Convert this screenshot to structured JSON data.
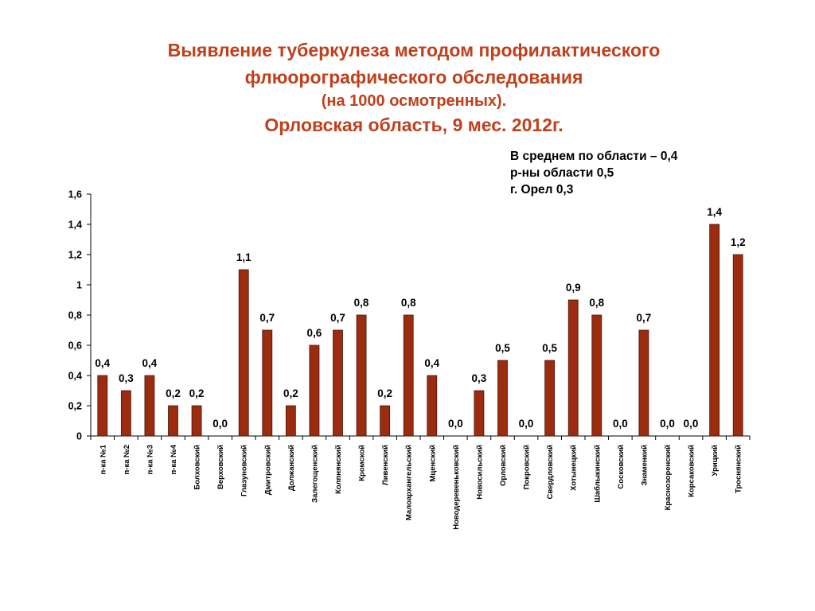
{
  "title": {
    "line1": "Выявление туберкулеза методом   профилактического",
    "line2": "флюорографического обследования",
    "line3": "(на 1000 осмотренных).",
    "line4": "Орловская область, 9 мес. 2012г."
  },
  "note": {
    "line1": "В среднем по области – 0,4",
    "line2": "р-ны области 0,5",
    "line3": "г. Орел 0,3"
  },
  "colors": {
    "bar": "#9b2c0f",
    "bar_stroke": "#4a1305",
    "title": "#c0401c"
  },
  "chart_data": {
    "type": "bar",
    "categories": [
      "п-ка №1",
      "п-ка №2",
      "п-ка №3",
      "п-ка №4",
      "Болховский",
      "Верховский",
      "Глазуновский",
      "Дмитровский",
      "Должанский",
      "Залегощенский",
      "Колпнянский",
      "Кромской",
      "Ливенский",
      "Малоархангельский",
      "Мценский",
      "Новодеревеньковский",
      "Новосильский",
      "Орловский",
      "Покровский",
      "Свердловский",
      "Хотынецкий",
      "Шаблыкинский",
      "Сосковский",
      "Знаменкий",
      "Краснозоренский",
      "Корсаковский",
      "Урицкий",
      "Троснянский"
    ],
    "values": [
      0.4,
      0.3,
      0.4,
      0.2,
      0.2,
      0.0,
      1.1,
      0.7,
      0.2,
      0.6,
      0.7,
      0.8,
      0.2,
      0.8,
      0.4,
      0.0,
      0.3,
      0.5,
      0.0,
      0.5,
      0.9,
      0.8,
      0.0,
      0.7,
      0.0,
      0.0,
      1.4,
      1.2
    ],
    "value_labels": [
      "0,4",
      "0,3",
      "0,4",
      "0,2",
      "0,2",
      "0,0",
      "1,1",
      "0,7",
      "0,2",
      "0,6",
      "0,7",
      "0,8",
      "0,2",
      "0,8",
      "0,4",
      "0,0",
      "0,3",
      "0,5",
      "0,0",
      "0,5",
      "0,9",
      "0,8",
      "0,0",
      "0,7",
      "0,0",
      "0,0",
      "1,4",
      "1,2"
    ],
    "yticks": [
      "0",
      "0,2",
      "0,4",
      "0,6",
      "0,8",
      "1",
      "1,2",
      "1,4",
      "1,6"
    ],
    "ylim": [
      0,
      1.6
    ],
    "grid": false,
    "legend": false
  }
}
